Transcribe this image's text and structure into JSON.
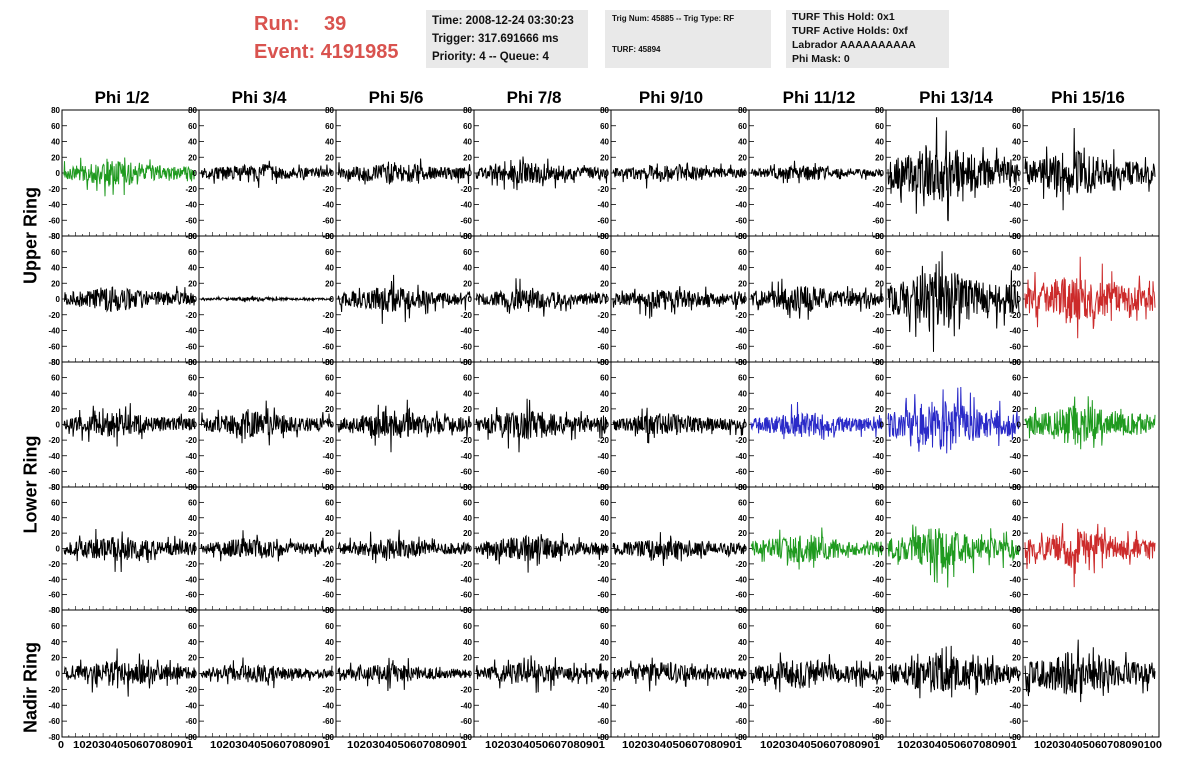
{
  "header": {
    "run_label": "Run:",
    "run_value": "39",
    "event_label": "Event:",
    "event_value": "4191985",
    "time": "Time: 2008-12-24 03:30:23",
    "trigger": "Trigger: 317.691666 ms",
    "priority": "Priority: 4 -- Queue: 4",
    "trig_num": "Trig Num: 45885 -- Trig Type: RF",
    "turf_num": "TURF: 45894",
    "turf_this_hold": "TURF This Hold: 0x1",
    "turf_active_holds": "TURF Active Holds: 0xf",
    "labrador": "Labrador AAAAAAAAAA",
    "phi_mask": "Phi Mask: 0"
  },
  "columns": [
    "Phi 1/2",
    "Phi 3/4",
    "Phi 5/6",
    "Phi 7/8",
    "Phi 9/10",
    "Phi 11/12",
    "Phi 13/14",
    "Phi 15/16"
  ],
  "row_labels": [
    "Upper Ring",
    "Lower Ring",
    "Nadir Ring"
  ],
  "chart_data": {
    "type": "line",
    "title": "",
    "xlabel": "",
    "ylabel": "",
    "xlim": [
      0,
      100
    ],
    "ylim": [
      -80,
      80
    ],
    "y_ticks": [
      80,
      60,
      40,
      20,
      0,
      -20,
      -40,
      -60,
      -80
    ],
    "x_ticks": [
      0,
      10,
      20,
      30,
      40,
      50,
      60,
      70,
      80,
      90,
      100
    ],
    "x_tick_labels_concat": [
      "0",
      "1020304050607080901",
      "1020304050607080901",
      "1020304050607080901",
      "1020304050607080901",
      "1020304050607080901",
      "1020304050607080901",
      "1020304050607080901",
      "102030405060708090100"
    ],
    "grid": false,
    "colors": {
      "black": "#000000",
      "green": "#1f9a1f",
      "red": "#cc2b2b",
      "blue": "#2a2ac8"
    },
    "panel_colors": [
      [
        "green",
        "black",
        "black",
        "black",
        "black",
        "black",
        "black",
        "black"
      ],
      [
        "black",
        "black",
        "black",
        "black",
        "black",
        "black",
        "black",
        "red"
      ],
      [
        "black",
        "black",
        "black",
        "black",
        "black",
        "blue",
        "blue",
        "green"
      ],
      [
        "black",
        "black",
        "black",
        "black",
        "black",
        "green",
        "green",
        "red"
      ],
      [
        "black",
        "black",
        "black",
        "black",
        "black",
        "black",
        "black",
        "black"
      ]
    ],
    "panel_amplitudes": [
      [
        14,
        10,
        12,
        12,
        10,
        8,
        30,
        24
      ],
      [
        14,
        2,
        14,
        12,
        12,
        14,
        32,
        26
      ],
      [
        14,
        14,
        16,
        16,
        12,
        14,
        26,
        22
      ],
      [
        14,
        12,
        12,
        14,
        12,
        16,
        22,
        22
      ],
      [
        14,
        10,
        10,
        12,
        12,
        16,
        20,
        24
      ]
    ]
  }
}
